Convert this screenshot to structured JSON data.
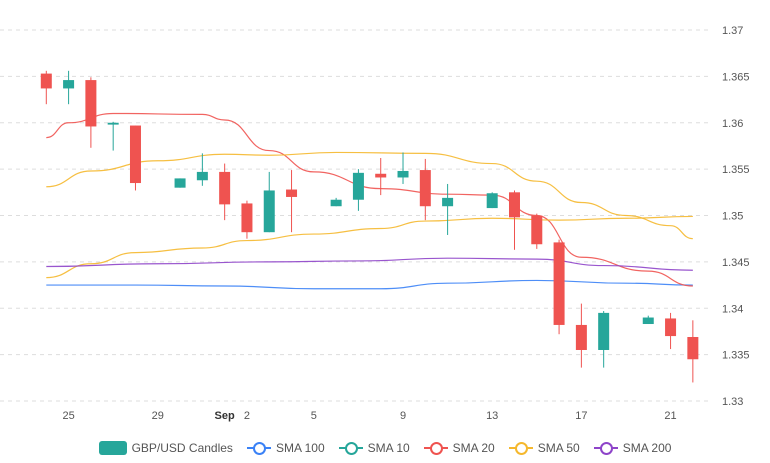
{
  "chart_data": {
    "type": "candlestick",
    "title": "",
    "xlabel": "",
    "ylabel": "",
    "ylim": [
      1.33,
      1.37
    ],
    "grid": "horizontal dashed",
    "legend_position": "bottom",
    "y_ticks": [
      "1.37",
      "1.365",
      "1.36",
      "1.355",
      "1.35",
      "1.345",
      "1.34",
      "1.335",
      "1.33"
    ],
    "x_ticks": [
      {
        "date": "2021-08-25",
        "label": "25"
      },
      {
        "date": "2021-08-29",
        "label": "29"
      },
      {
        "date": "2021-09-01",
        "label": "Sep",
        "bold": true
      },
      {
        "date": "2021-09-02",
        "label": "2"
      },
      {
        "date": "2021-09-05",
        "label": "5"
      },
      {
        "date": "2021-09-09",
        "label": "9"
      },
      {
        "date": "2021-09-13",
        "label": "13"
      },
      {
        "date": "2021-09-17",
        "label": "17"
      },
      {
        "date": "2021-09-21",
        "label": "21"
      }
    ],
    "x_range": [
      "2021-08-23",
      "2021-09-22"
    ],
    "candles": {
      "name": "GBP/USD Candles",
      "up_color": "#26a69a",
      "down_color": "#ef5350",
      "data": [
        {
          "date": "2021-08-24",
          "open": 1.3653,
          "high": 1.3656,
          "low": 1.362,
          "close": 1.3637
        },
        {
          "date": "2021-08-25",
          "open": 1.3637,
          "high": 1.3656,
          "low": 1.362,
          "close": 1.3646
        },
        {
          "date": "2021-08-26",
          "open": 1.3646,
          "high": 1.3649,
          "low": 1.3573,
          "close": 1.3596
        },
        {
          "date": "2021-08-27",
          "open": 1.3598,
          "high": 1.3601,
          "low": 1.357,
          "close": 1.36
        },
        {
          "date": "2021-08-28",
          "open": 1.3597,
          "high": 1.3597,
          "low": 1.3527,
          "close": 1.3535
        },
        {
          "date": "2021-08-30",
          "open": 1.353,
          "high": 1.354,
          "low": 1.353,
          "close": 1.354
        },
        {
          "date": "2021-08-31",
          "open": 1.3538,
          "high": 1.3567,
          "low": 1.3532,
          "close": 1.3547
        },
        {
          "date": "2021-09-01",
          "open": 1.3547,
          "high": 1.3556,
          "low": 1.3495,
          "close": 1.3512
        },
        {
          "date": "2021-09-02",
          "open": 1.3513,
          "high": 1.3516,
          "low": 1.3475,
          "close": 1.3482
        },
        {
          "date": "2021-09-03",
          "open": 1.3482,
          "high": 1.3547,
          "low": 1.3482,
          "close": 1.3527
        },
        {
          "date": "2021-09-04",
          "open": 1.3528,
          "high": 1.3549,
          "low": 1.3482,
          "close": 1.352
        },
        {
          "date": "2021-09-06",
          "open": 1.351,
          "high": 1.3519,
          "low": 1.351,
          "close": 1.3517
        },
        {
          "date": "2021-09-07",
          "open": 1.3517,
          "high": 1.355,
          "low": 1.3505,
          "close": 1.3546
        },
        {
          "date": "2021-09-08",
          "open": 1.3545,
          "high": 1.3562,
          "low": 1.3522,
          "close": 1.3541
        },
        {
          "date": "2021-09-09",
          "open": 1.3541,
          "high": 1.3568,
          "low": 1.3534,
          "close": 1.3548
        },
        {
          "date": "2021-09-10",
          "open": 1.3549,
          "high": 1.3561,
          "low": 1.3495,
          "close": 1.351
        },
        {
          "date": "2021-09-11",
          "open": 1.351,
          "high": 1.3534,
          "low": 1.3479,
          "close": 1.3519
        },
        {
          "date": "2021-09-13",
          "open": 1.3508,
          "high": 1.3525,
          "low": 1.3508,
          "close": 1.3524
        },
        {
          "date": "2021-09-14",
          "open": 1.3525,
          "high": 1.3527,
          "low": 1.3463,
          "close": 1.3498
        },
        {
          "date": "2021-09-15",
          "open": 1.35,
          "high": 1.3502,
          "low": 1.3464,
          "close": 1.3469
        },
        {
          "date": "2021-09-16",
          "open": 1.3471,
          "high": 1.3474,
          "low": 1.3372,
          "close": 1.3382
        },
        {
          "date": "2021-09-17",
          "open": 1.3382,
          "high": 1.3405,
          "low": 1.3336,
          "close": 1.3355
        },
        {
          "date": "2021-09-18",
          "open": 1.3355,
          "high": 1.3397,
          "low": 1.3336,
          "close": 1.3395
        },
        {
          "date": "2021-09-20",
          "open": 1.3383,
          "high": 1.3392,
          "low": 1.3383,
          "close": 1.339
        },
        {
          "date": "2021-09-21",
          "open": 1.3389,
          "high": 1.3395,
          "low": 1.3356,
          "close": 1.337
        },
        {
          "date": "2021-09-22",
          "open": 1.3369,
          "high": 1.3387,
          "low": 1.332,
          "close": 1.3345
        }
      ]
    },
    "series": [
      {
        "name": "SMA 100",
        "color": "#3b82f6",
        "points": [
          [
            "2021-08-24",
            1.3425
          ],
          [
            "2021-08-28",
            1.3425
          ],
          [
            "2021-09-01",
            1.3424
          ],
          [
            "2021-09-05",
            1.3421
          ],
          [
            "2021-09-08",
            1.3421
          ],
          [
            "2021-09-11",
            1.3427
          ],
          [
            "2021-09-15",
            1.343
          ],
          [
            "2021-09-19",
            1.3427
          ],
          [
            "2021-09-22",
            1.3425
          ]
        ]
      },
      {
        "name": "SMA 10",
        "color": "#26a69a",
        "points": []
      },
      {
        "name": "SMA 20",
        "color": "#ef5350",
        "points": [
          [
            "2021-08-24",
            1.3584
          ],
          [
            "2021-08-25",
            1.36
          ],
          [
            "2021-08-27",
            1.361
          ],
          [
            "2021-08-31",
            1.3609
          ],
          [
            "2021-09-01",
            1.3603
          ],
          [
            "2021-09-03",
            1.357
          ],
          [
            "2021-09-05",
            1.3547
          ],
          [
            "2021-09-08",
            1.3529
          ],
          [
            "2021-09-11",
            1.3523
          ],
          [
            "2021-09-13",
            1.3522
          ],
          [
            "2021-09-15",
            1.35
          ],
          [
            "2021-09-17",
            1.3455
          ],
          [
            "2021-09-20",
            1.344
          ],
          [
            "2021-09-22",
            1.3424
          ]
        ]
      },
      {
        "name": "SMA 50",
        "color": "#f5b82e",
        "points": [
          [
            "2021-08-24",
            1.3531
          ],
          [
            "2021-08-26",
            1.3548
          ],
          [
            "2021-08-29",
            1.3559
          ],
          [
            "2021-09-01",
            1.3566
          ],
          [
            "2021-09-03",
            1.3565
          ],
          [
            "2021-09-06",
            1.3568
          ],
          [
            "2021-09-10",
            1.3567
          ],
          [
            "2021-09-13",
            1.3556
          ],
          [
            "2021-09-15",
            1.3537
          ],
          [
            "2021-09-17",
            1.3514
          ],
          [
            "2021-09-19",
            1.35
          ],
          [
            "2021-09-21",
            1.3489
          ],
          [
            "2021-09-22",
            1.3475
          ]
        ]
      },
      {
        "name": "SMA 50 (lower)",
        "color": "#f5b82e",
        "legend": false,
        "points": [
          [
            "2021-08-24",
            1.3433
          ],
          [
            "2021-08-26",
            1.3448
          ],
          [
            "2021-08-28",
            1.346
          ],
          [
            "2021-08-31",
            1.3465
          ],
          [
            "2021-09-02",
            1.3473
          ],
          [
            "2021-09-05",
            1.348
          ],
          [
            "2021-09-08",
            1.3486
          ],
          [
            "2021-09-10",
            1.3494
          ],
          [
            "2021-09-13",
            1.3497
          ],
          [
            "2021-09-16",
            1.3495
          ],
          [
            "2021-09-19",
            1.3497
          ],
          [
            "2021-09-22",
            1.3499
          ]
        ]
      },
      {
        "name": "SMA 200",
        "color": "#8e44c9",
        "points": [
          [
            "2021-08-24",
            1.3445
          ],
          [
            "2021-08-29",
            1.3448
          ],
          [
            "2021-09-03",
            1.345
          ],
          [
            "2021-09-07",
            1.3451
          ],
          [
            "2021-09-11",
            1.3454
          ],
          [
            "2021-09-15",
            1.3453
          ],
          [
            "2021-09-18",
            1.3446
          ],
          [
            "2021-09-22",
            1.3441
          ]
        ]
      }
    ]
  },
  "legend": {
    "items": [
      {
        "label": "GBP/USD Candles",
        "icon": "candle-swatch",
        "color": "#26a69a"
      },
      {
        "label": "SMA 100",
        "icon": "line-circle",
        "color": "#3b82f6"
      },
      {
        "label": "SMA 10",
        "icon": "line-circle",
        "color": "#26a69a"
      },
      {
        "label": "SMA 20",
        "icon": "line-circle",
        "color": "#ef5350"
      },
      {
        "label": "SMA 50",
        "icon": "line-circle",
        "color": "#f5b82e"
      },
      {
        "label": "SMA 200",
        "icon": "line-circle",
        "color": "#8e44c9"
      }
    ]
  }
}
